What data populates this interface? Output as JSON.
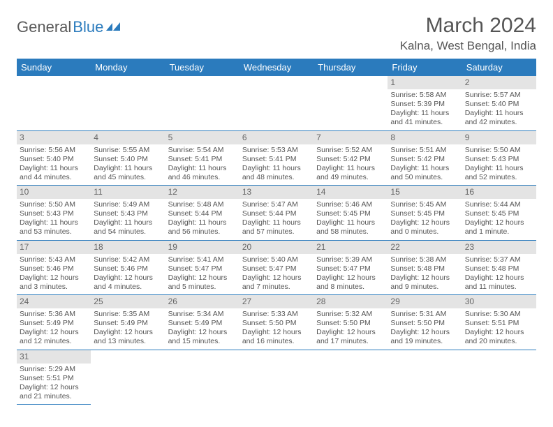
{
  "logo": {
    "general": "General",
    "blue": "Blue"
  },
  "title": "March 2024",
  "location": "Kalna, West Bengal, India",
  "colors": {
    "header_bg": "#2b7bbd",
    "header_fg": "#ffffff",
    "daynum_bg": "#e4e4e4",
    "text": "#555555",
    "row_border": "#2b7bbd"
  },
  "weekdays": [
    "Sunday",
    "Monday",
    "Tuesday",
    "Wednesday",
    "Thursday",
    "Friday",
    "Saturday"
  ],
  "grid": [
    [
      null,
      null,
      null,
      null,
      null,
      {
        "n": "1",
        "sr": "5:58 AM",
        "ss": "5:39 PM",
        "dl": "11 hours and 41 minutes."
      },
      {
        "n": "2",
        "sr": "5:57 AM",
        "ss": "5:40 PM",
        "dl": "11 hours and 42 minutes."
      }
    ],
    [
      {
        "n": "3",
        "sr": "5:56 AM",
        "ss": "5:40 PM",
        "dl": "11 hours and 44 minutes."
      },
      {
        "n": "4",
        "sr": "5:55 AM",
        "ss": "5:40 PM",
        "dl": "11 hours and 45 minutes."
      },
      {
        "n": "5",
        "sr": "5:54 AM",
        "ss": "5:41 PM",
        "dl": "11 hours and 46 minutes."
      },
      {
        "n": "6",
        "sr": "5:53 AM",
        "ss": "5:41 PM",
        "dl": "11 hours and 48 minutes."
      },
      {
        "n": "7",
        "sr": "5:52 AM",
        "ss": "5:42 PM",
        "dl": "11 hours and 49 minutes."
      },
      {
        "n": "8",
        "sr": "5:51 AM",
        "ss": "5:42 PM",
        "dl": "11 hours and 50 minutes."
      },
      {
        "n": "9",
        "sr": "5:50 AM",
        "ss": "5:43 PM",
        "dl": "11 hours and 52 minutes."
      }
    ],
    [
      {
        "n": "10",
        "sr": "5:50 AM",
        "ss": "5:43 PM",
        "dl": "11 hours and 53 minutes."
      },
      {
        "n": "11",
        "sr": "5:49 AM",
        "ss": "5:43 PM",
        "dl": "11 hours and 54 minutes."
      },
      {
        "n": "12",
        "sr": "5:48 AM",
        "ss": "5:44 PM",
        "dl": "11 hours and 56 minutes."
      },
      {
        "n": "13",
        "sr": "5:47 AM",
        "ss": "5:44 PM",
        "dl": "11 hours and 57 minutes."
      },
      {
        "n": "14",
        "sr": "5:46 AM",
        "ss": "5:45 PM",
        "dl": "11 hours and 58 minutes."
      },
      {
        "n": "15",
        "sr": "5:45 AM",
        "ss": "5:45 PM",
        "dl": "12 hours and 0 minutes."
      },
      {
        "n": "16",
        "sr": "5:44 AM",
        "ss": "5:45 PM",
        "dl": "12 hours and 1 minute."
      }
    ],
    [
      {
        "n": "17",
        "sr": "5:43 AM",
        "ss": "5:46 PM",
        "dl": "12 hours and 3 minutes."
      },
      {
        "n": "18",
        "sr": "5:42 AM",
        "ss": "5:46 PM",
        "dl": "12 hours and 4 minutes."
      },
      {
        "n": "19",
        "sr": "5:41 AM",
        "ss": "5:47 PM",
        "dl": "12 hours and 5 minutes."
      },
      {
        "n": "20",
        "sr": "5:40 AM",
        "ss": "5:47 PM",
        "dl": "12 hours and 7 minutes."
      },
      {
        "n": "21",
        "sr": "5:39 AM",
        "ss": "5:47 PM",
        "dl": "12 hours and 8 minutes."
      },
      {
        "n": "22",
        "sr": "5:38 AM",
        "ss": "5:48 PM",
        "dl": "12 hours and 9 minutes."
      },
      {
        "n": "23",
        "sr": "5:37 AM",
        "ss": "5:48 PM",
        "dl": "12 hours and 11 minutes."
      }
    ],
    [
      {
        "n": "24",
        "sr": "5:36 AM",
        "ss": "5:49 PM",
        "dl": "12 hours and 12 minutes."
      },
      {
        "n": "25",
        "sr": "5:35 AM",
        "ss": "5:49 PM",
        "dl": "12 hours and 13 minutes."
      },
      {
        "n": "26",
        "sr": "5:34 AM",
        "ss": "5:49 PM",
        "dl": "12 hours and 15 minutes."
      },
      {
        "n": "27",
        "sr": "5:33 AM",
        "ss": "5:50 PM",
        "dl": "12 hours and 16 minutes."
      },
      {
        "n": "28",
        "sr": "5:32 AM",
        "ss": "5:50 PM",
        "dl": "12 hours and 17 minutes."
      },
      {
        "n": "29",
        "sr": "5:31 AM",
        "ss": "5:50 PM",
        "dl": "12 hours and 19 minutes."
      },
      {
        "n": "30",
        "sr": "5:30 AM",
        "ss": "5:51 PM",
        "dl": "12 hours and 20 minutes."
      }
    ],
    [
      {
        "n": "31",
        "sr": "5:29 AM",
        "ss": "5:51 PM",
        "dl": "12 hours and 21 minutes."
      },
      null,
      null,
      null,
      null,
      null,
      null
    ]
  ],
  "labels": {
    "sunrise": "Sunrise: ",
    "sunset": "Sunset: ",
    "daylight": "Daylight: "
  }
}
